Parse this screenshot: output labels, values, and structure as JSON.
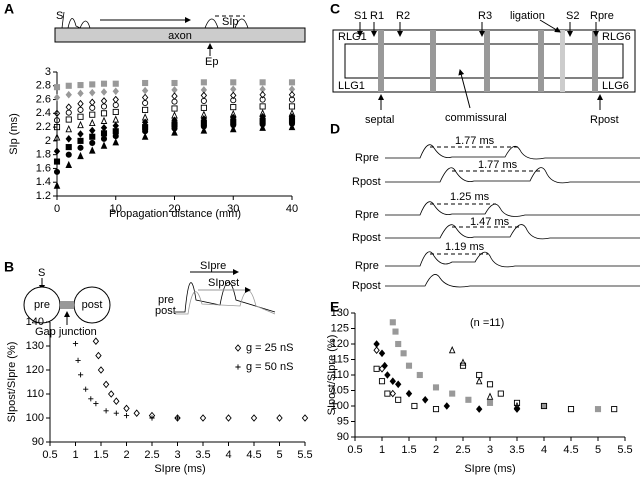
{
  "panel_labels": [
    "A",
    "B",
    "C",
    "D",
    "E"
  ],
  "diagram_a": {
    "stimulus": "S",
    "interval": "SIp",
    "axon": "axon",
    "electrode": "Ep"
  },
  "diagram_b": {
    "stimulus": "S",
    "pre": "pre",
    "post": "post",
    "junction": "Gap junction",
    "si_pre": "SIpre",
    "si_post": "SIpost",
    "trace_pre": "pre",
    "trace_post": "post"
  },
  "diagram_c": {
    "labels": [
      "S1",
      "R1",
      "R2",
      "R3",
      "ligation",
      "S2",
      "Rpre",
      "RLG1",
      "RLG6",
      "LLG1",
      "LLG6",
      "septal",
      "commissural",
      "Rpost"
    ]
  },
  "traces_d": {
    "rows": [
      {
        "top": "Rpre",
        "bottom": "Rpost",
        "intervals": [
          "1.77 ms",
          "1.77 ms"
        ]
      },
      {
        "top": "Rpre",
        "bottom": "Rpost",
        "intervals": [
          "1.25 ms",
          "1.47 ms"
        ]
      },
      {
        "top": "Rpre",
        "bottom": "Rpost",
        "intervals": [
          "1.19 ms"
        ]
      }
    ]
  },
  "chart_data": [
    {
      "type": "scatter",
      "xlabel": "Propagation distance (mm)",
      "ylabel": "SIp (ms)",
      "xlim": [
        0,
        40
      ],
      "ylim": [
        1.2,
        3
      ],
      "xticks": [
        0,
        10,
        20,
        30,
        40
      ],
      "yticks": [
        1.2,
        1.4,
        1.6,
        1.8,
        2,
        2.2,
        2.4,
        2.6,
        2.8,
        3
      ],
      "x": [
        0,
        2,
        4,
        6,
        8,
        10,
        15,
        20,
        25,
        30,
        35,
        40
      ],
      "series": [
        {
          "marker": "square",
          "color": "#999999",
          "filled": true,
          "values": [
            2.78,
            2.8,
            2.81,
            2.82,
            2.83,
            2.83,
            2.84,
            2.84,
            2.85,
            2.85,
            2.85,
            2.85
          ]
        },
        {
          "marker": "diamond",
          "color": "#999999",
          "filled": true,
          "values": [
            2.63,
            2.67,
            2.69,
            2.7,
            2.71,
            2.72,
            2.73,
            2.74,
            2.74,
            2.75,
            2.75,
            2.75
          ]
        },
        {
          "marker": "diamond",
          "color": "#000000",
          "filled": false,
          "values": [
            2.4,
            2.49,
            2.54,
            2.56,
            2.58,
            2.6,
            2.63,
            2.65,
            2.66,
            2.66,
            2.67,
            2.67
          ]
        },
        {
          "marker": "circle",
          "color": "#000000",
          "filled": false,
          "values": [
            2.3,
            2.41,
            2.45,
            2.48,
            2.5,
            2.52,
            2.55,
            2.57,
            2.58,
            2.59,
            2.6,
            2.6
          ]
        },
        {
          "marker": "square",
          "color": "#000000",
          "filled": false,
          "values": [
            2.2,
            2.31,
            2.35,
            2.38,
            2.4,
            2.42,
            2.45,
            2.47,
            2.48,
            2.49,
            2.5,
            2.5
          ]
        },
        {
          "marker": "triangle",
          "color": "#000000",
          "filled": false,
          "values": [
            2.05,
            2.17,
            2.23,
            2.26,
            2.29,
            2.31,
            2.34,
            2.37,
            2.38,
            2.39,
            2.4,
            2.4
          ]
        },
        {
          "marker": "diamond",
          "color": "#000000",
          "filled": true,
          "values": [
            1.85,
            2.03,
            2.1,
            2.15,
            2.19,
            2.22,
            2.27,
            2.3,
            2.32,
            2.34,
            2.35,
            2.35
          ]
        },
        {
          "marker": "square",
          "color": "#000000",
          "filled": true,
          "values": [
            1.7,
            1.91,
            2.0,
            2.06,
            2.11,
            2.14,
            2.2,
            2.24,
            2.26,
            2.28,
            2.29,
            2.3
          ]
        },
        {
          "marker": "circle",
          "color": "#000000",
          "filled": true,
          "values": [
            1.55,
            1.8,
            1.9,
            1.97,
            2.03,
            2.07,
            2.14,
            2.18,
            2.21,
            2.23,
            2.24,
            2.25
          ]
        },
        {
          "marker": "triangle",
          "color": "#000000",
          "filled": true,
          "values": [
            1.35,
            1.65,
            1.78,
            1.86,
            1.93,
            1.98,
            2.06,
            2.12,
            2.15,
            2.17,
            2.19,
            2.2
          ]
        }
      ]
    },
    {
      "type": "scatter",
      "xlabel": "SIpre (ms)",
      "ylabel": "SIpost/SIpre (%)",
      "xlim": [
        0.5,
        5.5
      ],
      "ylim": [
        90,
        140
      ],
      "xticks": [
        0.5,
        1,
        1.5,
        2,
        2.5,
        3,
        3.5,
        4,
        4.5,
        5,
        5.5
      ],
      "yticks": [
        90,
        100,
        110,
        120,
        130,
        140
      ],
      "series": [
        {
          "name": "g = 25 nS",
          "marker": "diamond",
          "color": "#000000",
          "filled": false,
          "x": [
            1.4,
            1.45,
            1.5,
            1.6,
            1.7,
            1.8,
            2,
            2.2,
            2.5,
            3,
            3.5,
            4,
            4.5,
            5,
            5.5
          ],
          "values": [
            132,
            126,
            120,
            114,
            110,
            107,
            104,
            102,
            101,
            100,
            100,
            100,
            100,
            100,
            100
          ]
        },
        {
          "name": "g = 50 nS",
          "marker": "plus",
          "color": "#000000",
          "filled": false,
          "x": [
            1,
            1.05,
            1.1,
            1.2,
            1.3,
            1.4,
            1.6,
            1.8,
            2,
            2.5,
            3
          ],
          "values": [
            131,
            124,
            118,
            112,
            108,
            106,
            103,
            102,
            101,
            100,
            100
          ]
        }
      ]
    },
    {
      "type": "scatter",
      "xlabel": "SIpre (ms)",
      "ylabel": "SIpost/SIpre (%)",
      "annotation": "(n =11)",
      "xlim": [
        0.5,
        5.5
      ],
      "ylim": [
        90,
        130
      ],
      "xticks": [
        0.5,
        1,
        1.5,
        2,
        2.5,
        3,
        3.5,
        4,
        4.5,
        5,
        5.5
      ],
      "yticks": [
        90,
        95,
        100,
        105,
        110,
        115,
        120,
        125,
        130
      ],
      "series": [
        {
          "marker": "diamond",
          "color": "#000000",
          "filled": true,
          "x": [
            0.9,
            1,
            1.05,
            1.1,
            1.2,
            1.3,
            1.5,
            1.8,
            2.2,
            2.8,
            3.5
          ],
          "values": [
            120,
            117,
            113,
            110,
            108,
            107,
            104,
            102,
            100,
            99,
            99
          ]
        },
        {
          "marker": "square",
          "color": "#999999",
          "filled": true,
          "x": [
            1.2,
            1.25,
            1.3,
            1.4,
            1.5,
            1.7,
            2,
            2.3,
            2.6,
            3,
            4,
            5
          ],
          "values": [
            127,
            124,
            120,
            117,
            113,
            110,
            106,
            104,
            102,
            101,
            100,
            99
          ]
        },
        {
          "marker": "square",
          "color": "#000000",
          "filled": false,
          "x": [
            0.9,
            1,
            1.1,
            1.3,
            1.6,
            2,
            2.5,
            2.8,
            3,
            3.2,
            3.5,
            4,
            4.5,
            5.3
          ],
          "values": [
            112,
            108,
            104,
            102,
            100,
            99,
            113,
            110,
            107,
            104,
            101,
            100,
            99,
            99
          ]
        },
        {
          "marker": "triangle",
          "color": "#000000",
          "filled": false,
          "x": [
            2.3,
            2.5,
            2.8,
            3,
            3.5
          ],
          "values": [
            118,
            114,
            108,
            103,
            100
          ]
        },
        {
          "marker": "diamond",
          "color": "#000000",
          "filled": false,
          "x": [
            0.9,
            1,
            1.2
          ],
          "values": [
            118,
            112,
            104
          ]
        }
      ]
    }
  ]
}
